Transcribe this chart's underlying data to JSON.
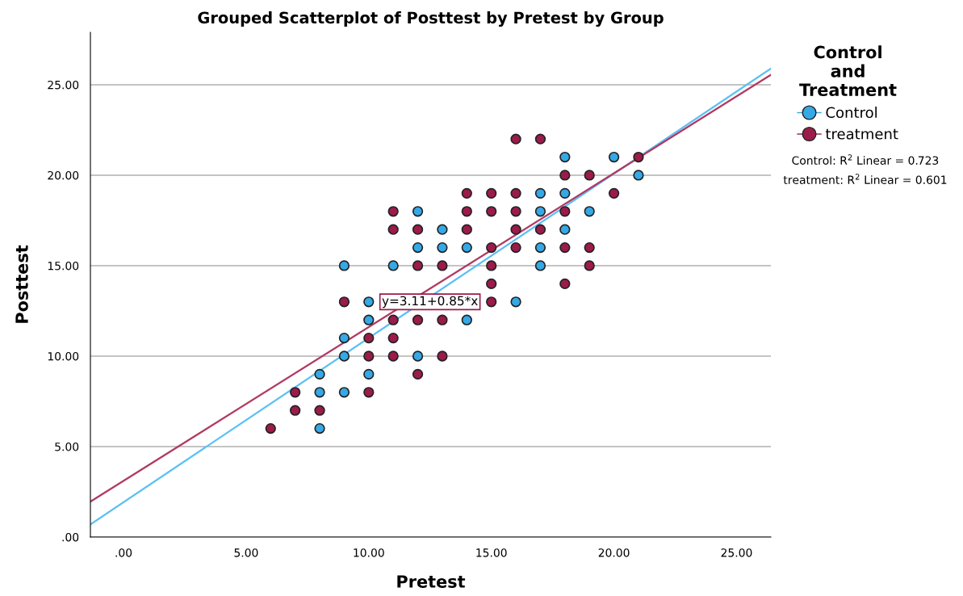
{
  "chart_data": {
    "type": "scatter",
    "title": "Grouped Scatterplot of Posttest by Pretest by Group",
    "xlabel": "Pretest",
    "ylabel": "Posttest",
    "legend_title": "Control\nand\nTreatment",
    "xlim": [
      -1.35,
      26.4
    ],
    "ylim": [
      0,
      27.9
    ],
    "xticks": [
      {
        "value": 0,
        "label": ".00"
      },
      {
        "value": 5,
        "label": "5.00"
      },
      {
        "value": 10,
        "label": "10.00"
      },
      {
        "value": 15,
        "label": "15.00"
      },
      {
        "value": 20,
        "label": "20.00"
      },
      {
        "value": 25,
        "label": "25.00"
      }
    ],
    "yticks": [
      {
        "value": 0,
        "label": ".00"
      },
      {
        "value": 5,
        "label": "5.00"
      },
      {
        "value": 10,
        "label": "10.00"
      },
      {
        "value": 15,
        "label": "15.00"
      },
      {
        "value": 20,
        "label": "20.00"
      },
      {
        "value": 25,
        "label": "25.00"
      }
    ],
    "grid": "y",
    "legend": "top right",
    "series": [
      {
        "name": "Control",
        "color": "#35a8e6",
        "marker": "circle",
        "x": [
          8,
          8,
          8,
          9,
          9,
          9,
          9,
          10,
          10,
          10,
          11,
          12,
          12,
          12,
          13,
          13,
          14,
          14,
          16,
          17,
          17,
          17,
          17,
          18,
          18,
          18,
          19,
          20,
          21
        ],
        "values": [
          9,
          8,
          6,
          15,
          11,
          10,
          8,
          13,
          12,
          9,
          15,
          18,
          16,
          10,
          17,
          16,
          16,
          12,
          13,
          19,
          18,
          16,
          15,
          21,
          19,
          17,
          18,
          21,
          20
        ]
      },
      {
        "name": "treatment",
        "color": "#9b1b4a",
        "marker": "circle",
        "x": [
          6,
          7,
          7,
          8,
          9,
          10,
          10,
          10,
          11,
          11,
          11,
          11,
          11,
          12,
          12,
          12,
          12,
          13,
          13,
          13,
          14,
          14,
          14,
          15,
          15,
          15,
          15,
          15,
          15,
          16,
          16,
          16,
          16,
          16,
          17,
          17,
          18,
          18,
          18,
          18,
          19,
          19,
          19,
          20,
          21
        ],
        "values": [
          6,
          8,
          7,
          7,
          13,
          11,
          10,
          8,
          18,
          17,
          12,
          11,
          10,
          17,
          15,
          12,
          9,
          15,
          12,
          10,
          19,
          18,
          17,
          19,
          18,
          16,
          15,
          14,
          13,
          22,
          19,
          18,
          17,
          16,
          22,
          17,
          20,
          18,
          16,
          14,
          20,
          16,
          15,
          19,
          21
        ]
      },
      {
        "type": "line",
        "color": "#5bc0f5",
        "x": [
          -1.35,
          26.4
        ],
        "values": [
          0.7,
          25.9
        ]
      },
      {
        "type": "line",
        "color": "#b03a63",
        "x": [
          -1.35,
          26.4
        ],
        "values": [
          1.96,
          25.55
        ]
      }
    ],
    "annotations": [
      "y=3.11+0.85*x",
      "Control: R$^{2}$ Linear = 0.723",
      "treatment: R$^{2}$ Linear = 0.601"
    ]
  }
}
